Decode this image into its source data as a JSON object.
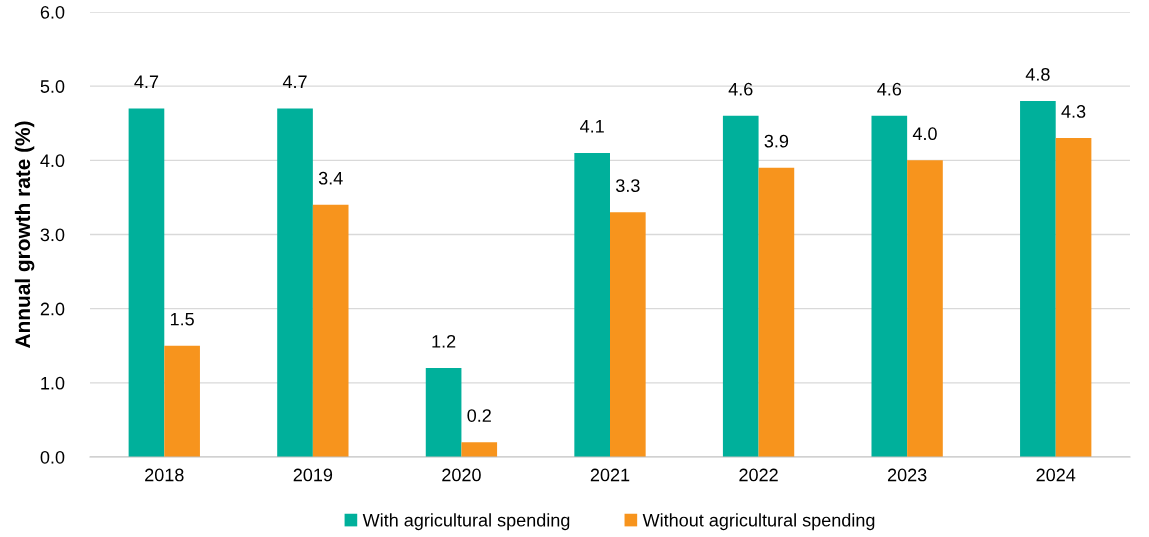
{
  "chart_data": {
    "type": "bar",
    "ylabel": "Annual growth rate (%)",
    "categories": [
      "2018",
      "2019",
      "2020",
      "2021",
      "2022",
      "2023",
      "2024"
    ],
    "series": [
      {
        "name": "With agricultural spending",
        "color": "#00b09b",
        "values": [
          4.7,
          4.7,
          1.2,
          4.1,
          4.6,
          4.6,
          4.8
        ],
        "value_labels": [
          "4.7",
          "4.7",
          "1.2",
          "4.1",
          "4.6",
          "4.6",
          "4.8"
        ]
      },
      {
        "name": "Without agricultural spending",
        "color": "#f7941d",
        "values": [
          1.5,
          3.4,
          0.2,
          3.3,
          3.9,
          4.0,
          4.3
        ],
        "value_labels": [
          "1.5",
          "3.4",
          "0.2",
          "3.3",
          "3.9",
          "4.0",
          "4.3"
        ]
      }
    ],
    "ylim": [
      0,
      6
    ],
    "yticks": [
      {
        "value": 0,
        "label": "0.0"
      },
      {
        "value": 1,
        "label": "1.0"
      },
      {
        "value": 2,
        "label": "2.0"
      },
      {
        "value": 3,
        "label": "3.0"
      },
      {
        "value": 4,
        "label": "4.0"
      },
      {
        "value": 5,
        "label": "5.0"
      },
      {
        "value": 6,
        "label": "6.0"
      }
    ],
    "grid": "y",
    "legend": "bottom"
  }
}
